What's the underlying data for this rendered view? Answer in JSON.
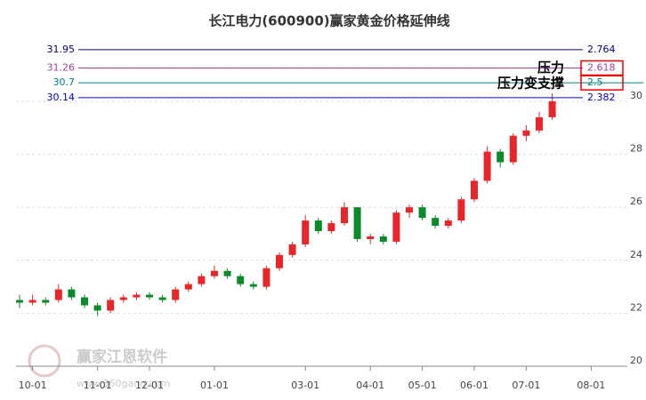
{
  "chart_data": {
    "type": "candlestick",
    "title": "长江电力(600900)赢家黄金价格延伸线",
    "categories": [
      null,
      "10-01",
      null,
      null,
      null,
      null,
      "11-01",
      null,
      null,
      null,
      "12-01",
      null,
      null,
      null,
      null,
      "01-01",
      null,
      null,
      null,
      null,
      null,
      null,
      "03-01",
      null,
      null,
      null,
      null,
      "04-01",
      null,
      null,
      null,
      "05-01",
      null,
      null,
      null,
      "06-01",
      null,
      null,
      null,
      "07-01",
      null,
      null,
      null,
      null,
      "08-01"
    ],
    "open": [
      22.5,
      22.4,
      22.5,
      22.5,
      22.9,
      22.6,
      22.3,
      22.1,
      22.5,
      22.6,
      22.7,
      22.6,
      22.5,
      22.9,
      23.1,
      23.4,
      23.6,
      23.4,
      23.1,
      23.0,
      23.7,
      24.2,
      24.6,
      25.5,
      25.1,
      25.4,
      26.0,
      24.8,
      24.9,
      24.7,
      25.8,
      26.0,
      25.6,
      25.3,
      25.5,
      26.3,
      27.0,
      28.1,
      27.7,
      28.7,
      28.9,
      29.4,
      null,
      null,
      null
    ],
    "high": [
      22.7,
      22.7,
      22.6,
      23.1,
      23.0,
      22.7,
      22.4,
      22.6,
      22.7,
      22.8,
      22.8,
      22.7,
      23.0,
      23.2,
      23.5,
      23.8,
      23.7,
      23.5,
      23.2,
      23.8,
      24.3,
      24.7,
      25.7,
      25.6,
      25.5,
      26.2,
      26.0,
      25.0,
      25.0,
      25.9,
      26.1,
      26.1,
      25.7,
      25.6,
      26.4,
      27.1,
      28.3,
      28.2,
      28.8,
      29.1,
      29.6,
      30.3,
      null,
      null,
      null
    ],
    "low": [
      22.2,
      22.3,
      22.3,
      22.4,
      22.5,
      22.2,
      21.9,
      22.0,
      22.4,
      22.5,
      22.5,
      22.4,
      22.4,
      22.8,
      23.0,
      23.3,
      23.3,
      23.0,
      22.9,
      22.9,
      23.6,
      24.1,
      24.5,
      25.0,
      25.0,
      25.3,
      24.7,
      24.6,
      24.6,
      24.6,
      25.6,
      25.5,
      25.2,
      25.2,
      25.4,
      26.2,
      26.9,
      27.5,
      27.6,
      28.5,
      28.8,
      29.3,
      null,
      null,
      null
    ],
    "close": [
      22.4,
      22.5,
      22.4,
      22.9,
      22.6,
      22.3,
      22.1,
      22.5,
      22.6,
      22.7,
      22.6,
      22.5,
      22.9,
      23.1,
      23.4,
      23.6,
      23.4,
      23.1,
      23.0,
      23.7,
      24.2,
      24.6,
      25.5,
      25.1,
      25.4,
      26.0,
      24.8,
      24.9,
      24.7,
      25.8,
      26.0,
      25.6,
      25.3,
      25.5,
      26.3,
      27.0,
      28.1,
      27.7,
      28.7,
      28.9,
      29.4,
      30.0,
      null,
      null,
      null
    ],
    "up_color": "#e8262a",
    "down_color": "#0a8a2a",
    "ylim": [
      20,
      32.5
    ],
    "yticks": [
      20,
      22,
      24,
      26,
      28,
      30
    ],
    "grid": true,
    "levels": [
      {
        "value": 31.95,
        "ratio": 2.764,
        "color": "#000080",
        "boxed": false
      },
      {
        "value": 31.26,
        "ratio": 2.618,
        "color": "#a040a0",
        "boxed": true
      },
      {
        "value": 30.7,
        "ratio": 2.5,
        "color": "#008080",
        "boxed": true
      },
      {
        "value": 30.14,
        "ratio": 2.382,
        "color": "#0000e0",
        "boxed": false
      }
    ],
    "annotations": [
      "压力",
      "压力变支撑"
    ],
    "watermark": "赢家江恩软件",
    "watermark_url": "www.360gann.com"
  }
}
